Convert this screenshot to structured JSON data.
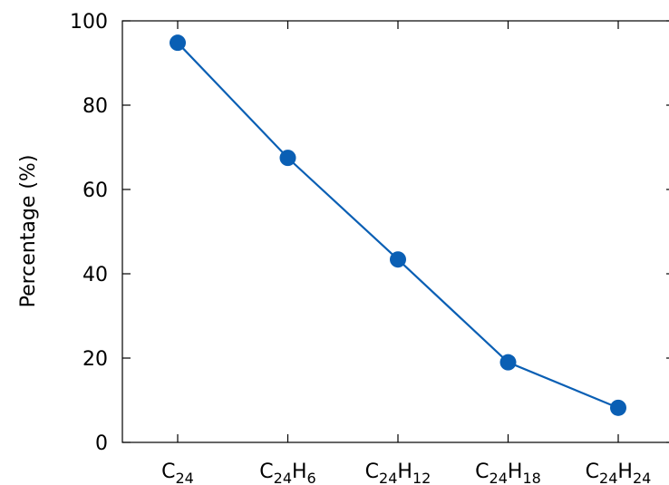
{
  "chart_data": {
    "type": "line",
    "title": "",
    "xlabel": "",
    "ylabel": "Percentage (%)",
    "ylim": [
      0,
      100
    ],
    "y_ticks": [
      0,
      20,
      40,
      60,
      80,
      100
    ],
    "grid": false,
    "legend": "none",
    "categories": [
      {
        "base": "C",
        "sub1": "24",
        "elem2": "",
        "sub2": ""
      },
      {
        "base": "C",
        "sub1": "24",
        "elem2": "H",
        "sub2": "6"
      },
      {
        "base": "C",
        "sub1": "24",
        "elem2": "H",
        "sub2": "12"
      },
      {
        "base": "C",
        "sub1": "24",
        "elem2": "H",
        "sub2": "18"
      },
      {
        "base": "C",
        "sub1": "24",
        "elem2": "H",
        "sub2": "24"
      }
    ],
    "series": [
      {
        "color": "#0a5fb4",
        "values": [
          94.8,
          67.5,
          43.4,
          19.0,
          8.2
        ]
      }
    ]
  }
}
